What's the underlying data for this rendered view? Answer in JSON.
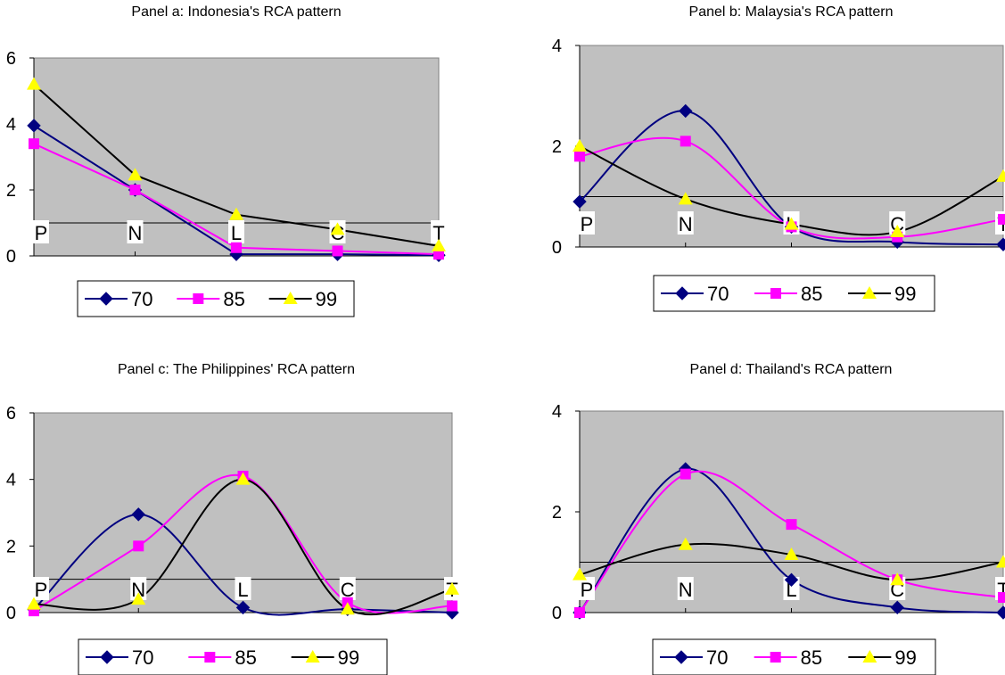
{
  "series_styles": [
    {
      "name": "70",
      "color": "#000080",
      "marker": "diamond"
    },
    {
      "name": "85",
      "color": "#ff00ff",
      "marker": "square"
    },
    {
      "name": "99",
      "color": "#000000",
      "marker": "triangle",
      "marker_color": "#ffff00"
    }
  ],
  "plot_background": "#c0c0c0",
  "reference_line_value": 1,
  "chart_data": [
    {
      "type": "line",
      "title": "Panel a: Indonesia's RCA pattern",
      "categories": [
        "P",
        "N",
        "L",
        "C",
        "T"
      ],
      "ylim": [
        0,
        6
      ],
      "yticks": [
        "0",
        "2",
        "4",
        "6"
      ],
      "smooth": false,
      "legend_position": "bottom",
      "series": [
        {
          "name": "70",
          "values": [
            3.95,
            2.0,
            0.05,
            0.05,
            0.02
          ]
        },
        {
          "name": "85",
          "values": [
            3.4,
            2.0,
            0.25,
            0.15,
            0.05
          ]
        },
        {
          "name": "99",
          "values": [
            5.2,
            2.45,
            1.25,
            0.8,
            0.3
          ]
        }
      ]
    },
    {
      "type": "line",
      "title": "Panel b: Malaysia's RCA pattern",
      "categories": [
        "P",
        "N",
        "L",
        "C",
        "T"
      ],
      "ylim": [
        0,
        4
      ],
      "yticks": [
        "0",
        "2",
        "4"
      ],
      "smooth": true,
      "legend_position": "bottom",
      "series": [
        {
          "name": "70",
          "values": [
            0.9,
            2.7,
            0.4,
            0.1,
            0.05
          ]
        },
        {
          "name": "85",
          "values": [
            1.8,
            2.1,
            0.4,
            0.2,
            0.55
          ]
        },
        {
          "name": "99",
          "values": [
            2.0,
            0.95,
            0.45,
            0.3,
            1.4
          ]
        }
      ]
    },
    {
      "type": "line",
      "title": "Panel c: The Philippines' RCA pattern",
      "categories": [
        "P",
        "N",
        "L",
        "C",
        "T"
      ],
      "ylim": [
        0,
        6
      ],
      "yticks": [
        "0",
        "2",
        "4",
        "6"
      ],
      "smooth": true,
      "legend_position": "bottom",
      "series": [
        {
          "name": "70",
          "values": [
            0.1,
            2.95,
            0.15,
            0.1,
            0.0
          ]
        },
        {
          "name": "85",
          "values": [
            0.05,
            2.0,
            4.1,
            0.3,
            0.2
          ]
        },
        {
          "name": "99",
          "values": [
            0.25,
            0.4,
            4.0,
            0.1,
            0.7
          ]
        }
      ]
    },
    {
      "type": "line",
      "title": "Panel d: Thailand's RCA pattern",
      "categories": [
        "P",
        "N",
        "L",
        "C",
        "T"
      ],
      "ylim": [
        0,
        4
      ],
      "yticks": [
        "0",
        "2",
        "4"
      ],
      "smooth": true,
      "legend_position": "bottom",
      "series": [
        {
          "name": "70",
          "values": [
            0.0,
            2.85,
            0.65,
            0.1,
            0.0
          ]
        },
        {
          "name": "85",
          "values": [
            0.0,
            2.75,
            1.75,
            0.65,
            0.3
          ]
        },
        {
          "name": "99",
          "values": [
            0.75,
            1.35,
            1.15,
            0.65,
            1.0
          ]
        }
      ]
    }
  ]
}
